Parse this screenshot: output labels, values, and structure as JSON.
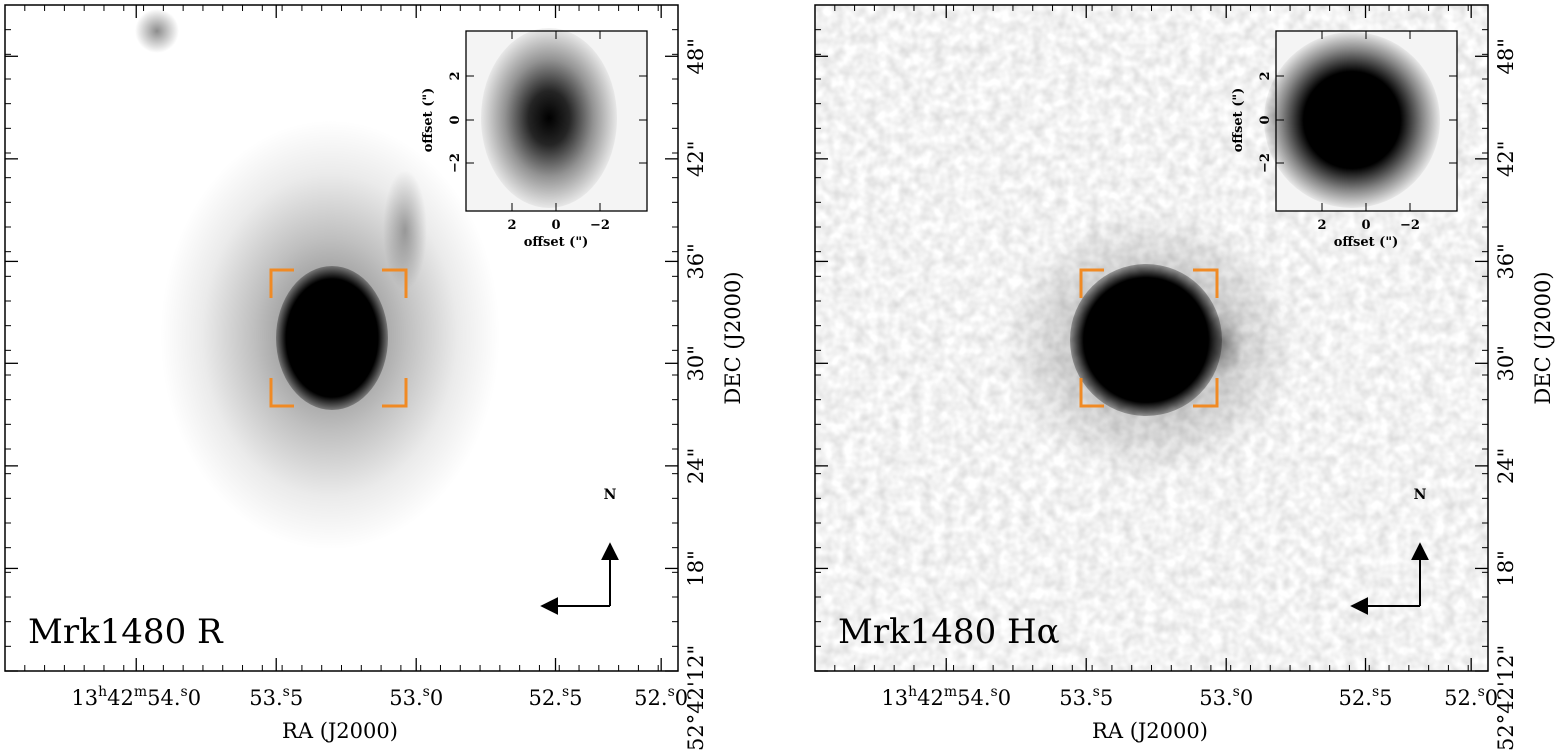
{
  "panels": [
    {
      "id": "r",
      "label": "Mrk1480 R",
      "xlabel": "RA (J2000)",
      "ylabel": "DEC (J2000)",
      "ra_ticks": [
        {
          "text": "13h42m54s0",
          "main": "13",
          "sup1": "h",
          "mid": "42",
          "sup2": "m",
          "end": "54",
          "sup3": "s",
          "tail": "0"
        },
        {
          "text": "53s5",
          "main": "53",
          "sup3": "s",
          "tail": "5"
        },
        {
          "text": "53s0",
          "main": "53",
          "sup3": "s",
          "tail": "0"
        },
        {
          "text": "52s5",
          "main": "52",
          "sup3": "s",
          "tail": "5"
        },
        {
          "text": "52s0",
          "main": "52",
          "sup3": "s",
          "tail": "0"
        }
      ],
      "dec_ticks": [
        {
          "text": "52°42'12\"",
          "value": "52°42'12\""
        },
        {
          "text": "18\"",
          "value": "18\""
        },
        {
          "text": "24\"",
          "value": "24\""
        },
        {
          "text": "30\"",
          "value": "30\""
        },
        {
          "text": "36\"",
          "value": "36\""
        },
        {
          "text": "42\"",
          "value": "42\""
        },
        {
          "text": "48\"",
          "value": "48\""
        }
      ],
      "inset": {
        "xlabel": "offset (\")",
        "ylabel": "offset (\")",
        "x_ticks": [
          "2",
          "0",
          "−2"
        ],
        "y_ticks": [
          "−2",
          "0",
          "2"
        ]
      },
      "compass": "N",
      "bracket_color": "#f08a24"
    },
    {
      "id": "ha",
      "label": "Mrk1480 Hα",
      "xlabel": "RA (J2000)",
      "ylabel": "DEC (J2000)",
      "ra_ticks": [
        {
          "text": "13h42m54s0",
          "main": "13",
          "sup1": "h",
          "mid": "42",
          "sup2": "m",
          "end": "54",
          "sup3": "s",
          "tail": "0"
        },
        {
          "text": "53s5",
          "main": "53",
          "sup3": "s",
          "tail": "5"
        },
        {
          "text": "53s0",
          "main": "53",
          "sup3": "s",
          "tail": "0"
        },
        {
          "text": "52s5",
          "main": "52",
          "sup3": "s",
          "tail": "5"
        },
        {
          "text": "52s0",
          "main": "52",
          "sup3": "s",
          "tail": "0"
        }
      ],
      "dec_ticks": [
        {
          "text": "52°42'12\"",
          "value": "52°42'12\""
        },
        {
          "text": "18\"",
          "value": "18\""
        },
        {
          "text": "24\"",
          "value": "24\""
        },
        {
          "text": "30\"",
          "value": "30\""
        },
        {
          "text": "36\"",
          "value": "36\""
        },
        {
          "text": "42\"",
          "value": "42\""
        },
        {
          "text": "48\"",
          "value": "48\""
        }
      ],
      "inset": {
        "xlabel": "offset (\")",
        "ylabel": "offset (\")",
        "x_ticks": [
          "2",
          "0",
          "−2"
        ],
        "y_ticks": [
          "−2",
          "0",
          "2"
        ]
      },
      "compass": "N",
      "bracket_color": "#f08a24"
    }
  ]
}
